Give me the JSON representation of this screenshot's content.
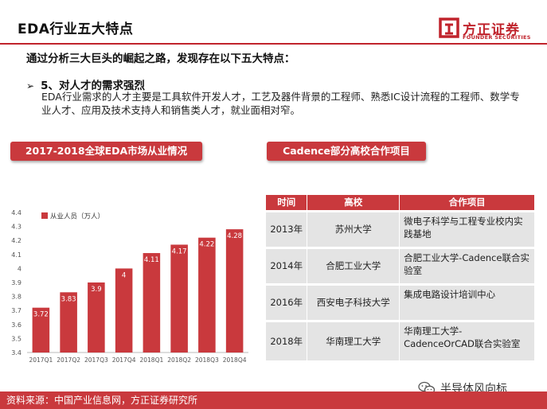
{
  "header": {
    "title": "EDA行业五大特点",
    "logo_cn": "方正证券",
    "logo_en": "FOUNDER SECURITIES"
  },
  "lead": "通过分析三大巨头的崛起之路，发现存在以下五大特点：",
  "point": {
    "heading": "5、对人才的需求强烈",
    "body": "EDA行业需求的人才主要是工具软件开发人才，工艺及器件背景的工程师、熟悉IC设计流程的工程师、数学专业人才、应用及技术支持人和销售类人才，就业面相对窄。"
  },
  "left_banner": "2017-2018全球EDA市场从业情况",
  "right_banner": "Cadence部分高校合作项目",
  "chart_data": {
    "type": "bar",
    "categories": [
      "2017Q1",
      "2017Q2",
      "2017Q3",
      "2017Q4",
      "2018Q1",
      "2018Q2",
      "2018Q3",
      "2018Q4"
    ],
    "series": [
      {
        "name": "从业人员（万人）",
        "values": [
          3.72,
          3.83,
          3.9,
          4,
          4.11,
          4.17,
          4.22,
          4.28
        ]
      }
    ],
    "value_labels": [
      "3.72",
      "3.83",
      "3.9",
      "4",
      "4.11",
      "4.17",
      "4.22",
      "4.28"
    ],
    "ylim": [
      3.4,
      4.4
    ],
    "yticks": [
      "3.4",
      "3.5",
      "3.6",
      "3.7",
      "3.8",
      "3.9",
      "4",
      "4.1",
      "4.2",
      "4.3",
      "4.4"
    ],
    "title": "",
    "xlabel": "",
    "ylabel": "",
    "legend": "top-left",
    "grid": false,
    "bar_color": "#c9393d"
  },
  "table": {
    "headers": [
      "时间",
      "高校",
      "合作项目"
    ],
    "rows": [
      {
        "year": "2013年",
        "school": "苏州大学",
        "project": "微电子科学与工程专业校内实践基地"
      },
      {
        "year": "2014年",
        "school": "合肥工业大学",
        "project": "合肥工业大学-Cadence联合实验室"
      },
      {
        "year": "2016年",
        "school": "西安电子科技大学",
        "project": "集成电路设计培训中心"
      },
      {
        "year": "2018年",
        "school": "华南理工大学",
        "project": "华南理工大学-CadenceOrCAD联合实验室"
      }
    ]
  },
  "source": "资料来源：中国产业信息网，方正证券研究所",
  "watermark": "半导体风向标",
  "colors": {
    "accent": "#c9393d",
    "rule": "#c0232c"
  }
}
